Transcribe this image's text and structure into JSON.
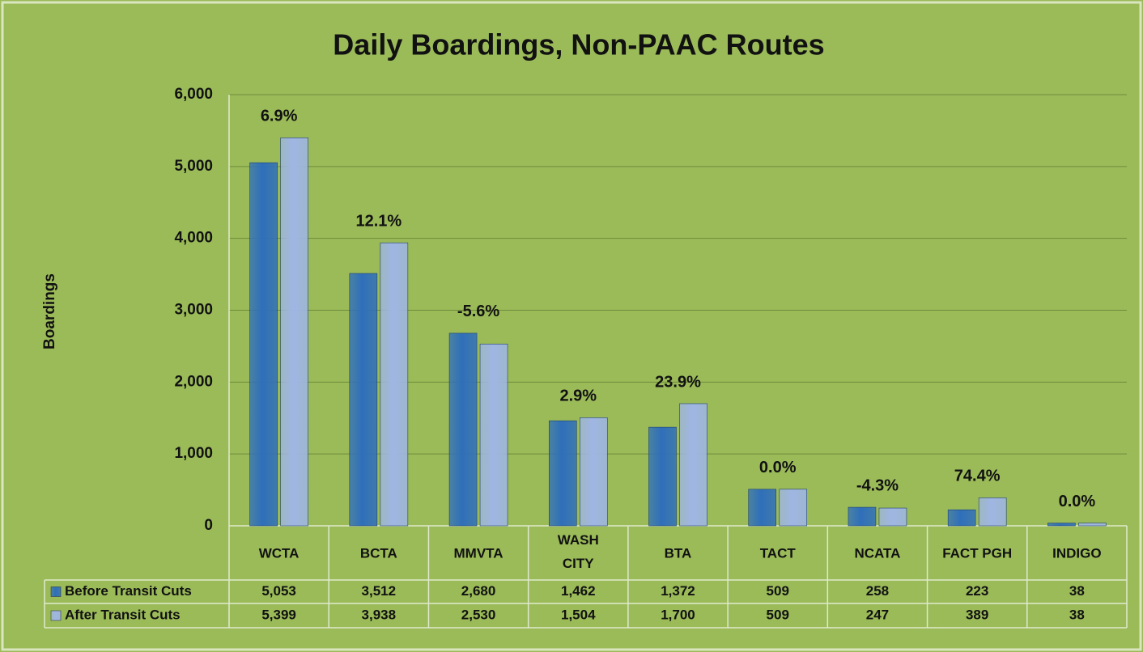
{
  "chart_data": {
    "type": "bar",
    "title": "Daily Boardings, Non-PAAC Routes",
    "y_label": "Boardings",
    "categories": [
      "WCTA",
      "BCTA",
      "MMVTA",
      "WASH CITY",
      "BTA",
      "TACT",
      "NCATA",
      "FACT PGH",
      "INDIGO"
    ],
    "series": [
      {
        "name": "Before Transit Cuts",
        "color": "#2f6fba",
        "values": [
          5053,
          3512,
          2680,
          1462,
          1372,
          509,
          258,
          223,
          38
        ],
        "value_labels": [
          "5,053",
          "3,512",
          "2,680",
          "1,462",
          "1,372",
          "509",
          "258",
          "223",
          "38"
        ]
      },
      {
        "name": "After Transit Cuts",
        "color": "#9fb6e4",
        "values": [
          5399,
          3938,
          2530,
          1504,
          1700,
          509,
          247,
          389,
          38
        ],
        "value_labels": [
          "5,399",
          "3,938",
          "2,530",
          "1,504",
          "1,700",
          "509",
          "247",
          "389",
          "38"
        ]
      }
    ],
    "annotations": [
      "6.9%",
      "12.1%",
      "-5.6%",
      "2.9%",
      "23.9%",
      "0.0%",
      "-4.3%",
      "74.4%",
      "0.0%"
    ],
    "ylim": [
      0,
      6000
    ],
    "yticks": [
      0,
      {
        "value": 1000,
        "label": "1,000"
      },
      {
        "value": 2000,
        "label": "2,000"
      },
      {
        "value": 3000,
        "label": "3,000"
      },
      {
        "value": 4000,
        "label": "4,000"
      },
      {
        "value": 5000,
        "label": "5,000"
      },
      {
        "value": 6000,
        "label": "6,000"
      }
    ],
    "grid": true
  }
}
